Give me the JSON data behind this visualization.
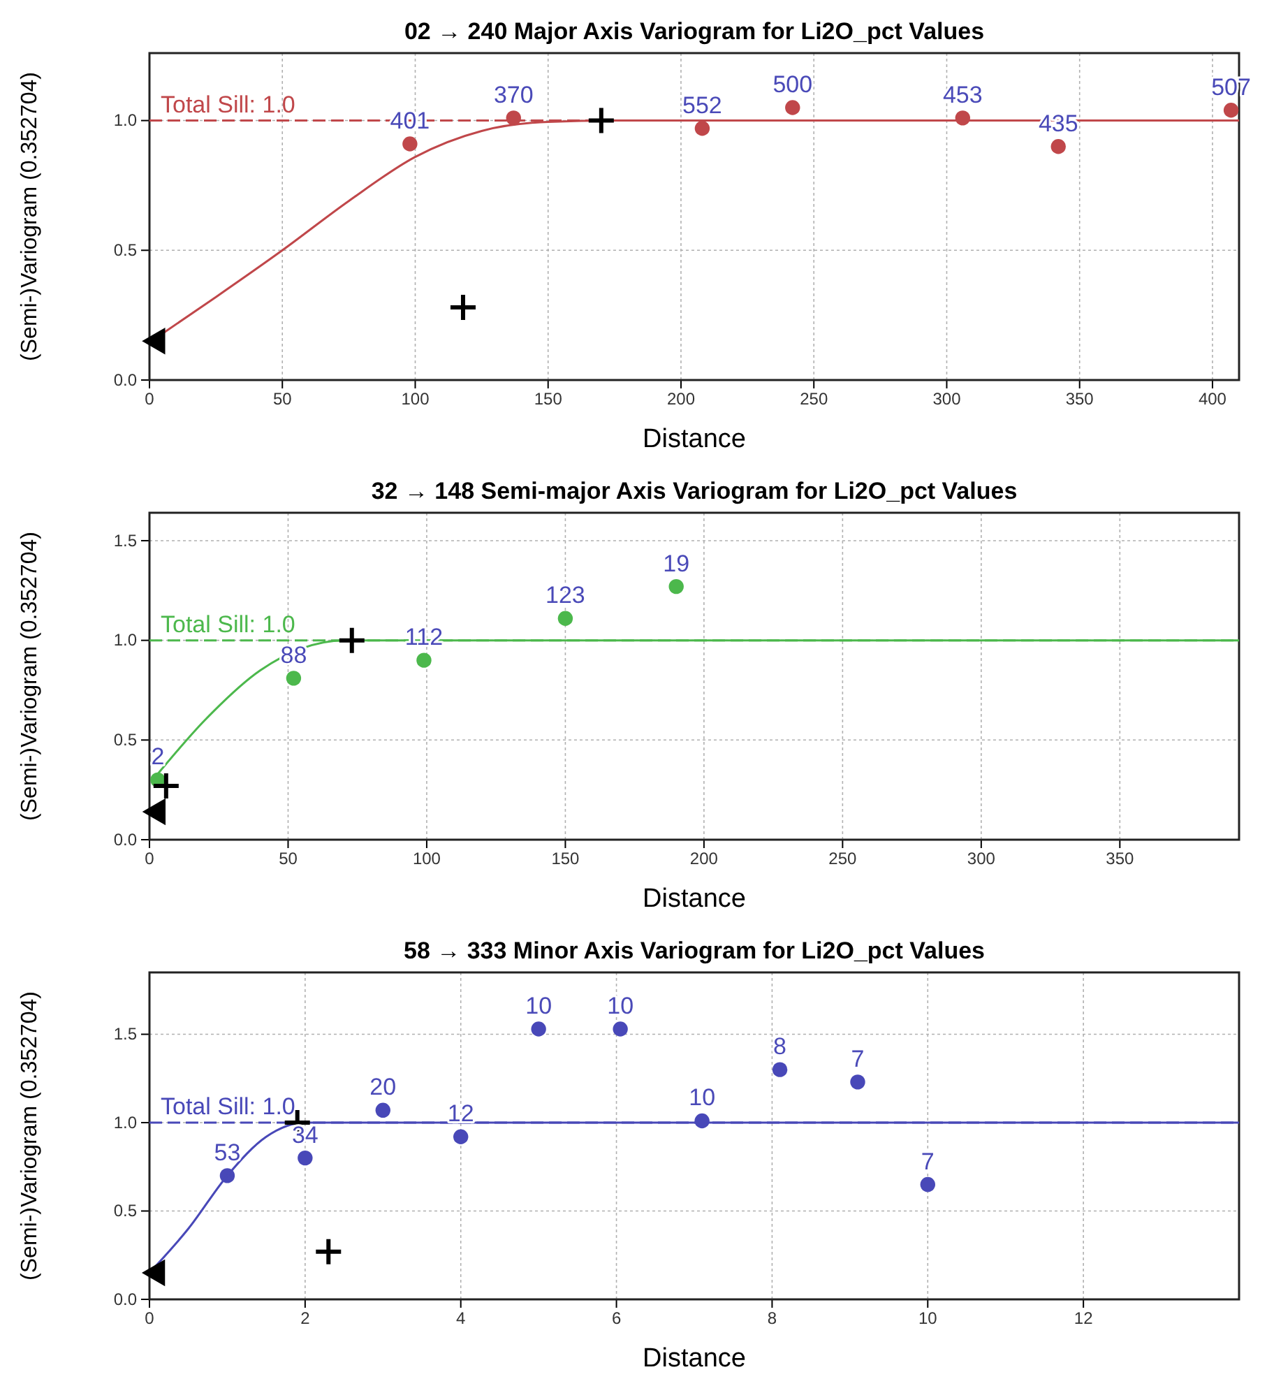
{
  "chart_data": [
    {
      "type": "scatter",
      "title": "02 → 240 Major Axis Variogram for Li2O_pct Values",
      "xlabel": "Distance",
      "ylabel": "(Semi-)Variogram (0.352704)",
      "xlim": [
        0,
        410
      ],
      "ylim": [
        0,
        1.26
      ],
      "xticks": [
        0,
        50,
        100,
        150,
        200,
        250,
        300,
        350,
        400
      ],
      "yticks": [
        {
          "value": 0,
          "label": "0.0"
        },
        {
          "value": 0.5,
          "label": "0.5"
        },
        {
          "value": 1,
          "label": "1.0"
        }
      ],
      "grid": true,
      "ref_lines": [
        {
          "axis": "y",
          "value": 1.0,
          "label": "Total Sill: 1.0",
          "color": "#c0474a",
          "line_style": "dashed"
        }
      ],
      "annotations": [
        {
          "text": "401",
          "x": 98,
          "y": 0.91
        },
        {
          "text": "370",
          "x": 137,
          "y": 1.01
        },
        {
          "text": "552",
          "x": 208,
          "y": 0.97
        },
        {
          "text": "500",
          "x": 242,
          "y": 1.05
        },
        {
          "text": "453",
          "x": 306,
          "y": 1.01
        },
        {
          "text": "435",
          "x": 342,
          "y": 0.9
        },
        {
          "text": "507",
          "x": 407,
          "y": 1.04
        }
      ],
      "series": [
        {
          "type": "scatter",
          "color": "#c0474a",
          "marker": "circle",
          "x": [
            98,
            137,
            208,
            242,
            306,
            342,
            407
          ],
          "values": [
            0.91,
            1.01,
            0.97,
            1.05,
            1.01,
            0.9,
            1.04
          ]
        },
        {
          "type": "line",
          "color": "#c0474a",
          "marker": "none",
          "line_style": "solid",
          "x": [
            5,
            25,
            50,
            75,
            100,
            125,
            150,
            175,
            410
          ],
          "values": [
            0.18,
            0.32,
            0.5,
            0.69,
            0.86,
            0.96,
            0.995,
            1.0,
            1.0
          ]
        },
        {
          "type": "scatter",
          "color": "#000000",
          "marker": "cross",
          "x": [
            170,
            118
          ],
          "values": [
            1.0,
            0.28
          ]
        },
        {
          "type": "scatter",
          "color": "#000000",
          "marker": "triangle",
          "x": [
            3
          ],
          "values": [
            0.15
          ]
        }
      ]
    },
    {
      "type": "scatter",
      "title": "32 → 148 Semi-major Axis Variogram for Li2O_pct Values",
      "xlabel": "Distance",
      "ylabel": "(Semi-)Variogram (0.352704)",
      "xlim": [
        0,
        393
      ],
      "ylim": [
        0,
        1.64
      ],
      "xticks": [
        0,
        50,
        100,
        150,
        200,
        250,
        300,
        350
      ],
      "yticks": [
        {
          "value": 0,
          "label": "0.0"
        },
        {
          "value": 0.5,
          "label": "0.5"
        },
        {
          "value": 1,
          "label": "1.0"
        },
        {
          "value": 1.5,
          "label": "1.5"
        }
      ],
      "grid": true,
      "ref_lines": [
        {
          "axis": "y",
          "value": 1.0,
          "label": "Total Sill: 1.0",
          "color": "#4cb84c",
          "line_style": "dashed"
        }
      ],
      "annotations": [
        {
          "text": "2",
          "x": 3,
          "y": 0.3
        },
        {
          "text": "88",
          "x": 52,
          "y": 0.81
        },
        {
          "text": "112",
          "x": 99,
          "y": 0.9
        },
        {
          "text": "123",
          "x": 150,
          "y": 1.11
        },
        {
          "text": "19",
          "x": 190,
          "y": 1.27
        }
      ],
      "series": [
        {
          "type": "scatter",
          "color": "#4cb84c",
          "marker": "circle",
          "x": [
            3,
            52,
            99,
            150,
            190
          ],
          "values": [
            0.3,
            0.81,
            0.9,
            1.11,
            1.27
          ]
        },
        {
          "type": "line",
          "color": "#4cb84c",
          "marker": "none",
          "line_style": "solid",
          "x": [
            3,
            20,
            40,
            55,
            70,
            393
          ],
          "values": [
            0.33,
            0.6,
            0.85,
            0.96,
            1.0,
            1.0
          ]
        },
        {
          "type": "scatter",
          "color": "#000000",
          "marker": "cross",
          "x": [
            73,
            6
          ],
          "values": [
            1.0,
            0.27
          ]
        },
        {
          "type": "scatter",
          "color": "#000000",
          "marker": "triangle",
          "x": [
            3
          ],
          "values": [
            0.14
          ]
        }
      ]
    },
    {
      "type": "scatter",
      "title": "58 → 333 Minor Axis Variogram for Li2O_pct Values",
      "xlabel": "Distance",
      "ylabel": "(Semi-)Variogram (0.352704)",
      "xlim": [
        0,
        14
      ],
      "ylim": [
        0,
        1.85
      ],
      "xticks": [
        0,
        2,
        4,
        6,
        8,
        10,
        12
      ],
      "yticks": [
        {
          "value": 0,
          "label": "0.0"
        },
        {
          "value": 0.5,
          "label": "0.5"
        },
        {
          "value": 1,
          "label": "1.0"
        },
        {
          "value": 1.5,
          "label": "1.5"
        }
      ],
      "grid": true,
      "ref_lines": [
        {
          "axis": "y",
          "value": 1.0,
          "label": "Total Sill: 1.0",
          "color": "#4848b8",
          "line_style": "dashed"
        }
      ],
      "annotations": [
        {
          "text": "53",
          "x": 1.0,
          "y": 0.7
        },
        {
          "text": "34",
          "x": 2.0,
          "y": 0.8
        },
        {
          "text": "20",
          "x": 3.0,
          "y": 1.07
        },
        {
          "text": "12",
          "x": 4.0,
          "y": 0.92
        },
        {
          "text": "10",
          "x": 5.0,
          "y": 1.53
        },
        {
          "text": "10",
          "x": 6.05,
          "y": 1.53
        },
        {
          "text": "10",
          "x": 7.1,
          "y": 1.01
        },
        {
          "text": "8",
          "x": 8.1,
          "y": 1.3
        },
        {
          "text": "7",
          "x": 9.1,
          "y": 1.23
        },
        {
          "text": "7",
          "x": 10.0,
          "y": 0.65
        }
      ],
      "series": [
        {
          "type": "scatter",
          "color": "#4848b8",
          "marker": "circle",
          "x": [
            1.0,
            2.0,
            3.0,
            4.0,
            5.0,
            6.05,
            7.1,
            8.1,
            9.1,
            10.0
          ],
          "values": [
            0.7,
            0.8,
            1.07,
            0.92,
            1.53,
            1.53,
            1.01,
            1.3,
            1.23,
            0.65
          ]
        },
        {
          "type": "line",
          "color": "#4848b8",
          "marker": "none",
          "line_style": "solid",
          "x": [
            0,
            0.5,
            1,
            1.5,
            2,
            14
          ],
          "values": [
            0.15,
            0.4,
            0.7,
            0.92,
            1.0,
            1.0
          ]
        },
        {
          "type": "scatter",
          "color": "#000000",
          "marker": "cross",
          "x": [
            1.9,
            2.3
          ],
          "values": [
            1.0,
            0.27
          ]
        },
        {
          "type": "scatter",
          "color": "#000000",
          "marker": "triangle",
          "x": [
            0.1
          ],
          "values": [
            0.15
          ]
        }
      ]
    }
  ]
}
